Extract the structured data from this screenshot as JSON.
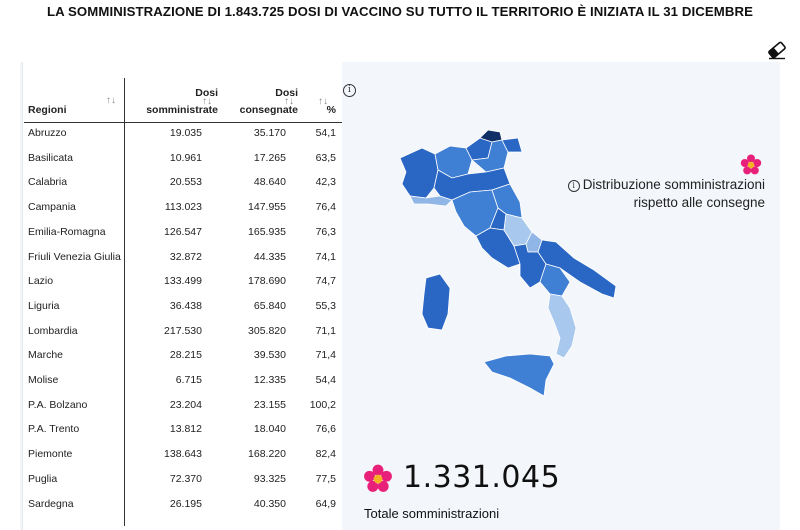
{
  "headline": "LA SOMMINISTRAZIONE DI 1.843.725 DOSI DI VACCINO SU TUTTO IL TERRITORIO È INIZIATA IL 31 DICEMBRE",
  "table": {
    "headers": {
      "region": "Regioni",
      "administered_line1": "Dosi",
      "administered_line2": "somministrate",
      "delivered_line1": "Dosi",
      "delivered_line2": "consegnate",
      "percent": "%"
    },
    "sort_glyph": "↑↓",
    "info_glyph": "i",
    "rows": [
      {
        "region": "Abruzzo",
        "administered": "19.035",
        "delivered": "35.170",
        "percent": "54,1"
      },
      {
        "region": "Basilicata",
        "administered": "10.961",
        "delivered": "17.265",
        "percent": "63,5"
      },
      {
        "region": "Calabria",
        "administered": "20.553",
        "delivered": "48.640",
        "percent": "42,3"
      },
      {
        "region": "Campania",
        "administered": "113.023",
        "delivered": "147.955",
        "percent": "76,4"
      },
      {
        "region": "Emilia-Romagna",
        "administered": "126.547",
        "delivered": "165.935",
        "percent": "76,3"
      },
      {
        "region": "Friuli Venezia Giulia",
        "administered": "32.872",
        "delivered": "44.335",
        "percent": "74,1"
      },
      {
        "region": "Lazio",
        "administered": "133.499",
        "delivered": "178.690",
        "percent": "74,7"
      },
      {
        "region": "Liguria",
        "administered": "36.438",
        "delivered": "65.840",
        "percent": "55,3"
      },
      {
        "region": "Lombardia",
        "administered": "217.530",
        "delivered": "305.820",
        "percent": "71,1"
      },
      {
        "region": "Marche",
        "administered": "28.215",
        "delivered": "39.530",
        "percent": "71,4"
      },
      {
        "region": "Molise",
        "administered": "6.715",
        "delivered": "12.335",
        "percent": "54,4"
      },
      {
        "region": "P.A. Bolzano",
        "administered": "23.204",
        "delivered": "23.155",
        "percent": "100,2"
      },
      {
        "region": "P.A. Trento",
        "administered": "13.812",
        "delivered": "18.040",
        "percent": "76,6"
      },
      {
        "region": "Piemonte",
        "administered": "138.643",
        "delivered": "168.220",
        "percent": "82,4"
      },
      {
        "region": "Puglia",
        "administered": "72.370",
        "delivered": "93.325",
        "percent": "77,5"
      },
      {
        "region": "Sardegna",
        "administered": "26.195",
        "delivered": "40.350",
        "percent": "64,9"
      }
    ]
  },
  "map": {
    "legend_line1": "Distribuzione somministrazioni",
    "legend_line2": "rispetto alle consegne",
    "colors": {
      "dark": "#2a66c4",
      "mid": "#3f7fd4",
      "light": "#8fb6e6",
      "lighter": "#a9c8ee",
      "navy": "#0f2f66"
    }
  },
  "total": {
    "value": "1.331.045",
    "label": "Totale somministrazioni"
  },
  "icons": {
    "eraser": "eraser-icon",
    "flower": "primula-flower-icon"
  },
  "colors": {
    "flower_petal": "#e8207a",
    "flower_center": "#f5b324",
    "panel_bg": "#f3f6fa"
  }
}
